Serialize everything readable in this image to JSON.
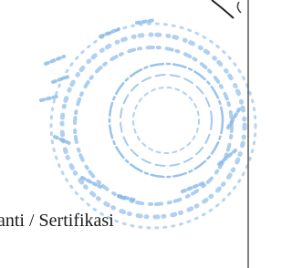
{
  "document": {
    "text": "anti / Sertifikasi"
  }
}
